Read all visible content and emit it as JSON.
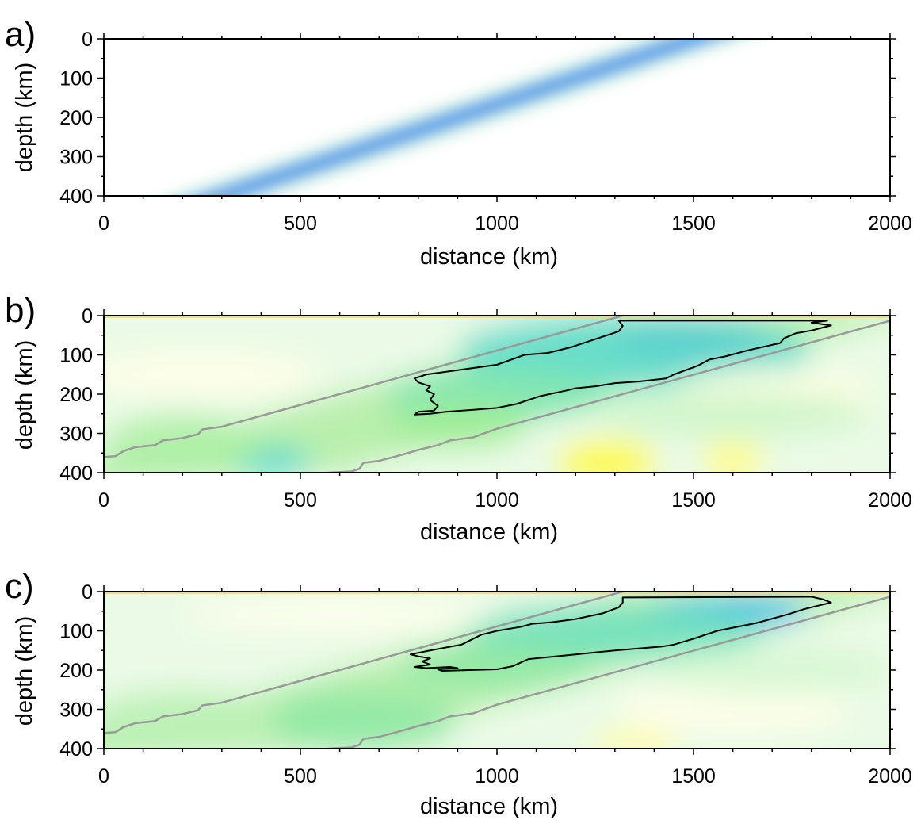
{
  "chart_data": [
    {
      "type": "heatmap",
      "panel_label": "a)",
      "xlabel": "distance (km)",
      "ylabel": "depth (km)",
      "xlim": [
        0,
        2000
      ],
      "ylim": [
        0,
        400
      ],
      "y_inverted": true,
      "xticks": [
        0,
        500,
        1000,
        1500,
        2000
      ],
      "yticks": [
        0,
        100,
        200,
        300,
        400
      ],
      "grid": false,
      "colormap": [
        "#ffff40",
        "#ffffff",
        "#a8f09a",
        "#2ad2f5",
        "#0a3cdc"
      ],
      "slab_centerline": [
        [
          1500,
          0
        ],
        [
          300,
          400
        ]
      ],
      "slab_halfwidth_km": 55,
      "slab_halo_km": 120,
      "contour_line": []
    },
    {
      "type": "heatmap",
      "panel_label": "b)",
      "xlabel": "distance (km)",
      "ylabel": "depth (km)",
      "xlim": [
        0,
        2000
      ],
      "ylim": [
        0,
        400
      ],
      "y_inverted": true,
      "xticks": [
        0,
        500,
        1000,
        1500,
        2000
      ],
      "yticks": [
        0,
        100,
        200,
        300,
        400
      ],
      "grid": false,
      "slab_outline_color": "#999999",
      "slab_upper_edge": [
        [
          0,
          360
        ],
        [
          30,
          358
        ],
        [
          50,
          345
        ],
        [
          80,
          335
        ],
        [
          130,
          330
        ],
        [
          150,
          318
        ],
        [
          200,
          312
        ],
        [
          240,
          302
        ],
        [
          250,
          290
        ],
        [
          300,
          283
        ],
        [
          1320,
          0
        ]
      ],
      "slab_lower_edge": [
        [
          570,
          400
        ],
        [
          630,
          397
        ],
        [
          650,
          390
        ],
        [
          660,
          375
        ],
        [
          700,
          370
        ],
        [
          760,
          354
        ],
        [
          800,
          342
        ],
        [
          850,
          330
        ],
        [
          880,
          318
        ],
        [
          940,
          310
        ],
        [
          1000,
          288
        ],
        [
          2000,
          13
        ]
      ],
      "contour_line": [
        [
          1310,
          13
        ],
        [
          1840,
          13
        ],
        [
          1800,
          18
        ],
        [
          1850,
          25
        ],
        [
          1830,
          30
        ],
        [
          1800,
          38
        ],
        [
          1760,
          45
        ],
        [
          1730,
          58
        ],
        [
          1720,
          70
        ],
        [
          1640,
          88
        ],
        [
          1580,
          104
        ],
        [
          1540,
          112
        ],
        [
          1510,
          128
        ],
        [
          1450,
          150
        ],
        [
          1430,
          160
        ],
        [
          1360,
          168
        ],
        [
          1300,
          172
        ],
        [
          1250,
          180
        ],
        [
          1200,
          185
        ],
        [
          1180,
          190
        ],
        [
          1110,
          205
        ],
        [
          1050,
          225
        ],
        [
          1000,
          235
        ],
        [
          940,
          240
        ],
        [
          870,
          245
        ],
        [
          830,
          250
        ],
        [
          790,
          252
        ],
        [
          800,
          245
        ],
        [
          840,
          242
        ],
        [
          850,
          230
        ],
        [
          830,
          215
        ],
        [
          840,
          200
        ],
        [
          820,
          190
        ],
        [
          830,
          180
        ],
        [
          800,
          170
        ],
        [
          790,
          160
        ],
        [
          820,
          150
        ],
        [
          1000,
          125
        ],
        [
          1070,
          100
        ],
        [
          1130,
          95
        ],
        [
          1190,
          80
        ],
        [
          1250,
          60
        ],
        [
          1310,
          40
        ],
        [
          1320,
          26
        ]
      ],
      "shading": [
        {
          "x": 1500,
          "depth": 60,
          "rx": 200,
          "ry": 45,
          "v": -0.95
        },
        {
          "x": 1350,
          "depth": 90,
          "rx": 450,
          "ry": 95,
          "v": -0.55
        },
        {
          "x": 1000,
          "depth": 200,
          "rx": 280,
          "ry": 70,
          "v": -0.45
        },
        {
          "x": 900,
          "depth": 280,
          "rx": 180,
          "ry": 60,
          "v": -0.35
        },
        {
          "x": 420,
          "depth": 375,
          "rx": 110,
          "ry": 45,
          "v": -0.55
        },
        {
          "x": 200,
          "depth": 330,
          "rx": 200,
          "ry": 80,
          "v": -0.3
        },
        {
          "x": 1280,
          "depth": 375,
          "rx": 130,
          "ry": 60,
          "v": 1.0
        },
        {
          "x": 1600,
          "depth": 370,
          "rx": 80,
          "ry": 55,
          "v": 0.6
        },
        {
          "x": 1700,
          "depth": 200,
          "rx": 260,
          "ry": 70,
          "v": 0.15
        },
        {
          "x": 250,
          "depth": 150,
          "rx": 300,
          "ry": 60,
          "v": 0.12
        },
        {
          "x": 1600,
          "depth": 250,
          "rx": 350,
          "ry": 60,
          "v": -0.18
        }
      ]
    },
    {
      "type": "heatmap",
      "panel_label": "c)",
      "xlabel": "distance (km)",
      "ylabel": "depth (km)",
      "xlim": [
        0,
        2000
      ],
      "ylim": [
        0,
        400
      ],
      "y_inverted": true,
      "xticks": [
        0,
        500,
        1000,
        1500,
        2000
      ],
      "yticks": [
        0,
        100,
        200,
        300,
        400
      ],
      "grid": false,
      "slab_outline_color": "#999999",
      "slab_upper_edge": [
        [
          0,
          360
        ],
        [
          30,
          358
        ],
        [
          50,
          345
        ],
        [
          80,
          335
        ],
        [
          130,
          330
        ],
        [
          150,
          318
        ],
        [
          200,
          312
        ],
        [
          240,
          302
        ],
        [
          250,
          290
        ],
        [
          300,
          283
        ],
        [
          1320,
          0
        ]
      ],
      "slab_lower_edge": [
        [
          570,
          400
        ],
        [
          630,
          397
        ],
        [
          650,
          390
        ],
        [
          660,
          375
        ],
        [
          700,
          370
        ],
        [
          760,
          354
        ],
        [
          800,
          342
        ],
        [
          850,
          330
        ],
        [
          880,
          318
        ],
        [
          940,
          310
        ],
        [
          1000,
          288
        ],
        [
          2000,
          13
        ]
      ],
      "contour_line": [
        [
          1320,
          15
        ],
        [
          1800,
          13
        ],
        [
          1830,
          20
        ],
        [
          1850,
          28
        ],
        [
          1820,
          35
        ],
        [
          1780,
          45
        ],
        [
          1740,
          58
        ],
        [
          1660,
          80
        ],
        [
          1560,
          100
        ],
        [
          1500,
          120
        ],
        [
          1450,
          135
        ],
        [
          1420,
          140
        ],
        [
          1300,
          150
        ],
        [
          1200,
          160
        ],
        [
          1120,
          168
        ],
        [
          1080,
          172
        ],
        [
          1040,
          190
        ],
        [
          1000,
          198
        ],
        [
          930,
          200
        ],
        [
          860,
          202
        ],
        [
          850,
          198
        ],
        [
          900,
          195
        ],
        [
          880,
          192
        ],
        [
          820,
          195
        ],
        [
          790,
          192
        ],
        [
          830,
          186
        ],
        [
          810,
          178
        ],
        [
          830,
          170
        ],
        [
          800,
          165
        ],
        [
          780,
          160
        ],
        [
          830,
          150
        ],
        [
          910,
          135
        ],
        [
          960,
          110
        ],
        [
          1000,
          100
        ],
        [
          1060,
          90
        ],
        [
          1090,
          82
        ],
        [
          1140,
          78
        ],
        [
          1200,
          70
        ],
        [
          1270,
          55
        ],
        [
          1310,
          40
        ],
        [
          1320,
          28
        ]
      ],
      "shading": [
        {
          "x": 1580,
          "depth": 50,
          "rx": 220,
          "ry": 40,
          "v": -0.75
        },
        {
          "x": 1300,
          "depth": 100,
          "rx": 380,
          "ry": 70,
          "v": -0.5
        },
        {
          "x": 1000,
          "depth": 190,
          "rx": 250,
          "ry": 60,
          "v": -0.4
        },
        {
          "x": 650,
          "depth": 330,
          "rx": 250,
          "ry": 80,
          "v": -0.4
        },
        {
          "x": 200,
          "depth": 330,
          "rx": 250,
          "ry": 80,
          "v": -0.25
        },
        {
          "x": 1350,
          "depth": 390,
          "rx": 110,
          "ry": 40,
          "v": 0.45
        },
        {
          "x": 1600,
          "depth": 300,
          "rx": 300,
          "ry": 60,
          "v": 0.12
        },
        {
          "x": 600,
          "depth": 60,
          "rx": 400,
          "ry": 40,
          "v": 0.1
        },
        {
          "x": 1700,
          "depth": 200,
          "rx": 300,
          "ry": 60,
          "v": -0.15
        }
      ]
    }
  ]
}
